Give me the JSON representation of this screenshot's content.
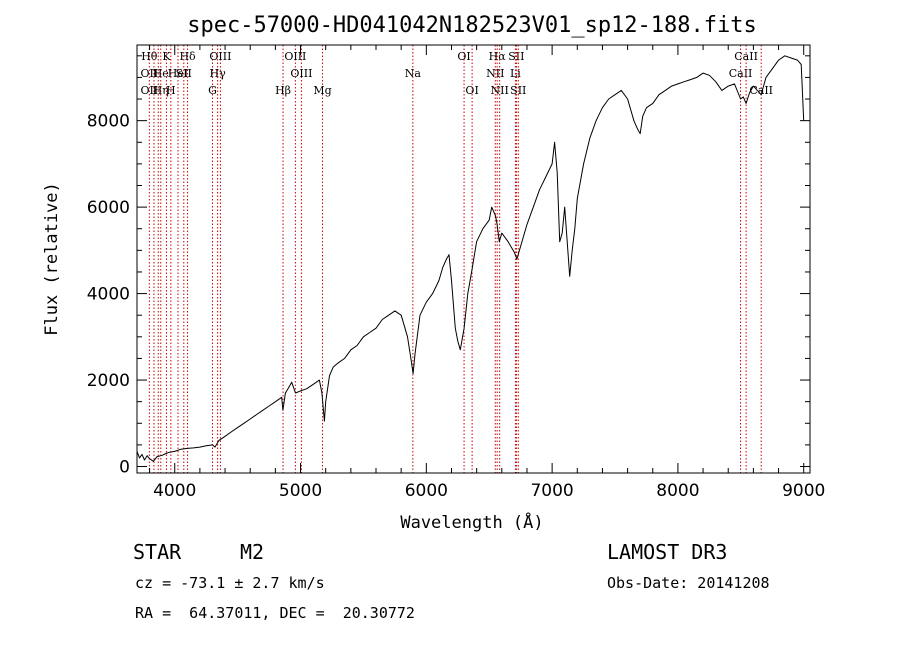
{
  "chart_data": {
    "type": "line",
    "title": "spec-57000-HD041042N182523V01_sp12-188.fits",
    "xlabel": "Wavelength (Å)",
    "ylabel": "Flux (relative)",
    "xlim": [
      3700,
      9050
    ],
    "ylim": [
      -150,
      9750
    ],
    "xticks": [
      4000,
      5000,
      6000,
      7000,
      8000,
      9000
    ],
    "yticks": [
      0,
      2000,
      4000,
      6000,
      8000
    ],
    "grid": false,
    "series": [
      {
        "name": "flux",
        "x": [
          3700,
          3720,
          3740,
          3760,
          3780,
          3800,
          3830,
          3860,
          3900,
          3930,
          3960,
          4000,
          4050,
          4100,
          4150,
          4200,
          4250,
          4300,
          4320,
          4350,
          4400,
          4450,
          4500,
          4550,
          4600,
          4650,
          4700,
          4750,
          4800,
          4850,
          4860,
          4880,
          4900,
          4930,
          4960,
          5000,
          5050,
          5100,
          5150,
          5170,
          5190,
          5200,
          5230,
          5260,
          5300,
          5350,
          5400,
          5450,
          5500,
          5550,
          5600,
          5650,
          5700,
          5750,
          5800,
          5850,
          5880,
          5895,
          5910,
          5950,
          6000,
          6050,
          6100,
          6130,
          6160,
          6180,
          6200,
          6230,
          6250,
          6270,
          6300,
          6330,
          6360,
          6400,
          6450,
          6500,
          6520,
          6550,
          6563,
          6580,
          6600,
          6650,
          6700,
          6720,
          6750,
          6800,
          6850,
          6900,
          6950,
          7000,
          7020,
          7040,
          7060,
          7080,
          7100,
          7120,
          7140,
          7160,
          7180,
          7200,
          7250,
          7300,
          7350,
          7400,
          7450,
          7500,
          7550,
          7600,
          7650,
          7680,
          7700,
          7720,
          7750,
          7800,
          7850,
          7900,
          7950,
          8000,
          8050,
          8100,
          8150,
          8200,
          8250,
          8300,
          8350,
          8400,
          8450,
          8498,
          8520,
          8542,
          8570,
          8600,
          8662,
          8700,
          8750,
          8800,
          8850,
          8900,
          8950,
          8980,
          9000
        ],
        "values": [
          350,
          200,
          280,
          150,
          250,
          180,
          120,
          230,
          260,
          300,
          330,
          350,
          400,
          420,
          430,
          450,
          480,
          500,
          450,
          600,
          700,
          800,
          900,
          1000,
          1100,
          1200,
          1300,
          1400,
          1500,
          1600,
          1300,
          1700,
          1800,
          1950,
          1700,
          1750,
          1800,
          1900,
          2000,
          1700,
          1050,
          1500,
          2100,
          2300,
          2400,
          2500,
          2700,
          2800,
          3000,
          3100,
          3200,
          3400,
          3500,
          3600,
          3500,
          3000,
          2450,
          2150,
          2600,
          3500,
          3800,
          4000,
          4300,
          4600,
          4800,
          4900,
          4300,
          3200,
          2900,
          2700,
          3200,
          4000,
          4500,
          5200,
          5500,
          5700,
          6000,
          5800,
          5600,
          5200,
          5400,
          5200,
          4950,
          4800,
          5100,
          5600,
          6000,
          6400,
          6700,
          7000,
          7500,
          6800,
          5200,
          5400,
          6000,
          5200,
          4400,
          5000,
          5500,
          6200,
          7000,
          7600,
          8000,
          8300,
          8500,
          8600,
          8700,
          8500,
          8000,
          7800,
          7700,
          8100,
          8300,
          8400,
          8600,
          8700,
          8800,
          8850,
          8900,
          8950,
          9000,
          9100,
          9050,
          8900,
          8700,
          8800,
          8850,
          8500,
          8550,
          8400,
          8650,
          8800,
          8600,
          9000,
          9200,
          9400,
          9500,
          9450,
          9400,
          9300,
          8000
        ]
      }
    ],
    "line_marks": [
      {
        "wave": 3798,
        "top": "Hθ",
        "mid": "OII",
        "bot": "OII"
      },
      {
        "wave": 3835,
        "top": "",
        "mid": "",
        "bot": ""
      },
      {
        "wave": 3869,
        "top": "",
        "mid": "",
        "bot": ""
      },
      {
        "wave": 3889,
        "top": "",
        "mid": "He",
        "bot": "Hη"
      },
      {
        "wave": 3934,
        "top": "K",
        "mid": "",
        "bot": ""
      },
      {
        "wave": 3969,
        "top": "",
        "mid": "",
        "bot": "H"
      },
      {
        "wave": 4026,
        "top": "",
        "mid": "HeI",
        "bot": ""
      },
      {
        "wave": 4072,
        "top": "",
        "mid": "SII",
        "bot": ""
      },
      {
        "wave": 4102,
        "top": "Hδ",
        "mid": "",
        "bot": ""
      },
      {
        "wave": 4300,
        "top": "",
        "mid": "",
        "bot": "G"
      },
      {
        "wave": 4341,
        "top": "",
        "mid": "Hγ",
        "bot": ""
      },
      {
        "wave": 4363,
        "top": "OIII",
        "mid": "",
        "bot": ""
      },
      {
        "wave": 4861,
        "top": "",
        "mid": "",
        "bot": "Hβ"
      },
      {
        "wave": 4959,
        "top": "OIII",
        "mid": "",
        "bot": ""
      },
      {
        "wave": 5007,
        "top": "",
        "mid": "OIII",
        "bot": ""
      },
      {
        "wave": 5175,
        "top": "",
        "mid": "",
        "bot": "Mg"
      },
      {
        "wave": 5893,
        "top": "",
        "mid": "Na",
        "bot": ""
      },
      {
        "wave": 6300,
        "top": "OI",
        "mid": "",
        "bot": ""
      },
      {
        "wave": 6364,
        "top": "",
        "mid": "",
        "bot": "OI"
      },
      {
        "wave": 6548,
        "top": "",
        "mid": "NII",
        "bot": ""
      },
      {
        "wave": 6563,
        "top": "Hα",
        "mid": "",
        "bot": ""
      },
      {
        "wave": 6583,
        "top": "",
        "mid": "",
        "bot": "NII"
      },
      {
        "wave": 6708,
        "top": "",
        "mid": "Li",
        "bot": ""
      },
      {
        "wave": 6716,
        "top": "SII",
        "mid": "",
        "bot": ""
      },
      {
        "wave": 6731,
        "top": "",
        "mid": "",
        "bot": "SII"
      },
      {
        "wave": 8498,
        "top": "",
        "mid": "CaII",
        "bot": ""
      },
      {
        "wave": 8542,
        "top": "CaII",
        "mid": "",
        "bot": ""
      },
      {
        "wave": 8662,
        "top": "",
        "mid": "",
        "bot": "CaII"
      }
    ]
  },
  "info": {
    "object_class": "STAR",
    "subclass": "M2",
    "survey": "LAMOST DR3",
    "cz": "cz = -73.1 ± 2.7 km/s",
    "obs_date": "Obs-Date: 20141208",
    "coords": "RA =  64.37011, DEC =  20.30772"
  }
}
